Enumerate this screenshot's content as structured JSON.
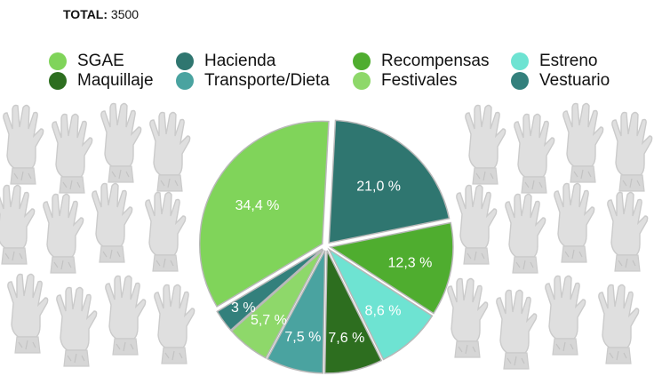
{
  "header": {
    "total_label": "TOTAL:",
    "total_value": "3500"
  },
  "colors": {
    "pattern": "#d9d9d9",
    "pattern_stroke": "#c4c4c4",
    "slice_border": "#b8b8b8"
  },
  "chart_data": {
    "type": "pie",
    "title": "",
    "total": 3500,
    "slices": [
      {
        "name": "SGAE",
        "value": 34.4,
        "label": "34,4 %",
        "color": "#80d45a"
      },
      {
        "name": "Hacienda",
        "value": 21.0,
        "label": "21,0 %",
        "color": "#2f7670"
      },
      {
        "name": "Recompensas",
        "value": 12.3,
        "label": "12,3 %",
        "color": "#4fad2f"
      },
      {
        "name": "Estreno",
        "value": 8.6,
        "label": "8,6 %",
        "color": "#6ee3d2"
      },
      {
        "name": "Maquillaje",
        "value": 7.6,
        "label": "7,6 %",
        "color": "#2d6e1f"
      },
      {
        "name": "Transporte/Dieta",
        "value": 7.5,
        "label": "7,5 %",
        "color": "#4aa3a0"
      },
      {
        "name": "Festivales",
        "value": 5.7,
        "label": "5,7 %",
        "color": "#8ed86a"
      },
      {
        "name": "Vestuario",
        "value": 3.0,
        "label": "3 %",
        "color": "#33807c"
      }
    ],
    "legend": {
      "placement": "top",
      "entries": [
        "SGAE",
        "Maquillaje",
        "Hacienda",
        "Transporte/Dieta",
        "Recompensas",
        "Festivales",
        "Estreno",
        "Vestuario"
      ]
    }
  }
}
